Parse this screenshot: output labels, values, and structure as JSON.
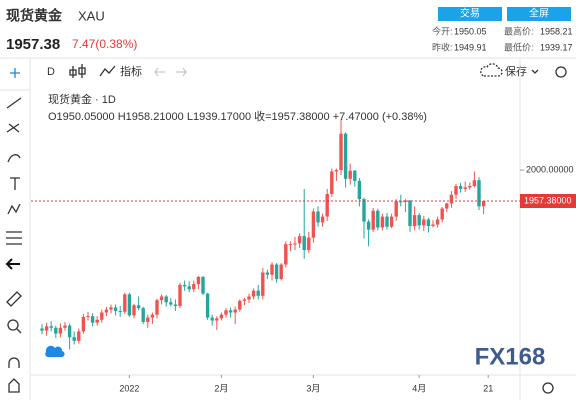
{
  "header": {
    "name": "现货黄金",
    "symbol": "XAU",
    "price": "1957.38",
    "change": "7.47(0.38%)",
    "buttons": [
      "交易",
      "全屏"
    ],
    "stats": [
      {
        "label": "今开:",
        "value": "1950.05"
      },
      {
        "label": "最高价:",
        "value": "1958.21"
      },
      {
        "label": "昨收:",
        "value": "1949.91"
      },
      {
        "label": "最低价:",
        "value": "1939.17"
      }
    ]
  },
  "toolbar": {
    "interval": "D",
    "indicator": "指标",
    "save": "保存"
  },
  "legend": {
    "name": "现货黄金 · 1D",
    "ohlc": "O1950.05000 H1958.21000 L1939.17000 收=1957.38000 +7.47000 (+0.38%)"
  },
  "watermark": "FX168",
  "chart_data": {
    "type": "candlestick",
    "up_color": "#ef5350",
    "down_color": "#26a69a",
    "ylim": [
      1718,
      2117
    ],
    "yticks": [
      {
        "value": 2000,
        "label": "2000.00000"
      }
    ],
    "price_line": {
      "value": 1957.38,
      "label": "1957.38000",
      "color": "#e53935"
    },
    "xticks": [
      {
        "value": 19,
        "label": "2022"
      },
      {
        "value": 39,
        "label": "2月"
      },
      {
        "value": 59,
        "label": "3月"
      },
      {
        "value": 82,
        "label": "4月"
      },
      {
        "value": 97,
        "label": "21"
      }
    ],
    "open": [
      1782,
      1779,
      1785,
      1783,
      1775,
      1783,
      1786,
      1770,
      1765,
      1778,
      1798,
      1799,
      1790,
      1794,
      1804,
      1808,
      1811,
      1806,
      1805,
      1829,
      1800,
      1814,
      1810,
      1791,
      1797,
      1801,
      1821,
      1826,
      1818,
      1815,
      1813,
      1842,
      1840,
      1836,
      1843,
      1853,
      1830,
      1797,
      1793,
      1796,
      1801,
      1807,
      1804,
      1808,
      1820,
      1822,
      1826,
      1834,
      1827,
      1859,
      1856,
      1870,
      1850,
      1870,
      1898,
      1898,
      1899,
      1909,
      1890,
      1907,
      1943,
      1928,
      1936,
      1967,
      1998,
      2000,
      2050,
      1988,
      1999,
      1985,
      1960,
      1929,
      1918,
      1944,
      1921,
      1936,
      1922,
      1936,
      1957,
      1956,
      1958,
      1923,
      1938,
      1924,
      1932,
      1923,
      1925,
      1932,
      1947,
      1954,
      1966,
      1978,
      1974,
      1976,
      1978,
      1986,
      1950.05
    ],
    "high": [
      1788,
      1790,
      1792,
      1786,
      1789,
      1791,
      1789,
      1778,
      1782,
      1802,
      1805,
      1803,
      1799,
      1808,
      1812,
      1815,
      1815,
      1813,
      1831,
      1831,
      1816,
      1826,
      1812,
      1801,
      1804,
      1823,
      1829,
      1828,
      1824,
      1822,
      1845,
      1848,
      1847,
      1848,
      1854,
      1854,
      1831,
      1801,
      1799,
      1804,
      1810,
      1811,
      1812,
      1822,
      1824,
      1830,
      1837,
      1842,
      1865,
      1863,
      1873,
      1872,
      1872,
      1902,
      1902,
      1908,
      1913,
      1974,
      1915,
      1947,
      1950,
      1940,
      1974,
      2002,
      2002,
      2070,
      2052,
      2009,
      2000,
      1989,
      1962,
      1932,
      1948,
      1947,
      1940,
      1941,
      1940,
      1960,
      1966,
      1960,
      1959,
      1950,
      1941,
      1937,
      1934,
      1931,
      1936,
      1949,
      1955,
      1971,
      1981,
      1982,
      1984,
      1983,
      1998,
      1990,
      1958.21
    ],
    "low": [
      1774,
      1772,
      1778,
      1769,
      1770,
      1779,
      1753,
      1760,
      1761,
      1775,
      1793,
      1785,
      1786,
      1790,
      1799,
      1803,
      1800,
      1798,
      1802,
      1798,
      1796,
      1807,
      1788,
      1783,
      1788,
      1796,
      1815,
      1812,
      1812,
      1806,
      1810,
      1834,
      1832,
      1832,
      1836,
      1828,
      1794,
      1786,
      1780,
      1793,
      1797,
      1797,
      1788,
      1805,
      1814,
      1817,
      1822,
      1822,
      1822,
      1850,
      1848,
      1845,
      1848,
      1866,
      1888,
      1890,
      1893,
      1878,
      1886,
      1900,
      1922,
      1922,
      1930,
      1963,
      1985,
      1993,
      1976,
      1980,
      1977,
      1950,
      1906,
      1895,
      1915,
      1917,
      1917,
      1918,
      1920,
      1930,
      1950,
      1942,
      1915,
      1917,
      1918,
      1916,
      1914,
      1921,
      1921,
      1928,
      1942,
      1948,
      1960,
      1969,
      1970,
      1973,
      1976,
      1945,
      1939.17
    ],
    "close": [
      1779,
      1785,
      1783,
      1775,
      1783,
      1786,
      1770,
      1765,
      1778,
      1798,
      1799,
      1790,
      1794,
      1804,
      1808,
      1811,
      1806,
      1805,
      1829,
      1800,
      1814,
      1810,
      1791,
      1797,
      1801,
      1821,
      1826,
      1818,
      1815,
      1813,
      1842,
      1840,
      1836,
      1843,
      1853,
      1830,
      1797,
      1793,
      1796,
      1801,
      1807,
      1804,
      1808,
      1820,
      1822,
      1826,
      1834,
      1827,
      1859,
      1856,
      1870,
      1850,
      1870,
      1898,
      1898,
      1899,
      1909,
      1890,
      1907,
      1943,
      1928,
      1936,
      1967,
      1998,
      2000,
      2050,
      1988,
      1999,
      1985,
      1960,
      1929,
      1918,
      1944,
      1921,
      1936,
      1922,
      1936,
      1957,
      1956,
      1958,
      1923,
      1938,
      1924,
      1932,
      1923,
      1925,
      1932,
      1947,
      1954,
      1966,
      1978,
      1974,
      1976,
      1978,
      1986,
      1950,
      1957.38
    ]
  }
}
